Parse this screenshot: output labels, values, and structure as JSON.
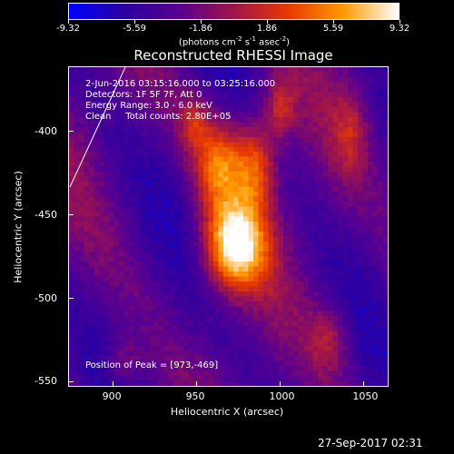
{
  "colorbar": {
    "tick_labels": [
      "-9.32",
      "-5.59",
      "-1.86",
      "1.86",
      "5.59",
      "9.32"
    ],
    "unit": {
      "base": "(photons cm",
      "exp1": "-2",
      "mid": " s",
      "exp2": "-1",
      "mid2": " asec",
      "exp3": "-2",
      "end": ")"
    }
  },
  "chart_data": {
    "type": "heatmap",
    "title": "Reconstructed RHESSI Image",
    "xlabel": "Heliocentric X (arcsec)",
    "ylabel": "Heliocentric Y (arcsec)",
    "xlim": [
      873,
      1065
    ],
    "ylim": [
      -553,
      -361
    ],
    "value_range": [
      -9.32,
      9.32
    ],
    "x_ticks": [
      900,
      950,
      1000,
      1050
    ],
    "y_ticks": [
      -400,
      -450,
      -500,
      -550
    ],
    "grid": false,
    "colormap": [
      "#0000ff",
      "#2b00a0",
      "#5a0090",
      "#a0154a",
      "#e83a00",
      "#ff9a00",
      "#ffffff"
    ],
    "peak": [
      973,
      -469
    ]
  },
  "info": {
    "line1": "2-Jun-2016 03:15:16.000 to 03:25:16.000",
    "line2": "Detectors: 1F 5F 7F, Att 0",
    "line3": "Energy Range: 3.0 - 6.0 keV",
    "line4": "Clean     Total counts: 2.80E+05",
    "peak_text": "Position of Peak = [973,-469]"
  },
  "footer": {
    "timestamp": "27-Sep-2017 02:31"
  }
}
